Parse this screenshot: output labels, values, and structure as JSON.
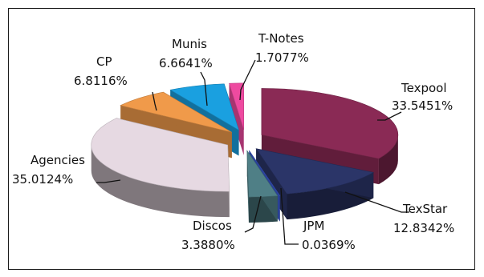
{
  "chart_data": {
    "type": "pie",
    "title": "",
    "style": "3d-exploded",
    "series": [
      {
        "name": "Texpool",
        "label": "Texpool",
        "value_text": "33.5451%",
        "value": 33.5451,
        "color": "#8a2a55"
      },
      {
        "name": "TexStar",
        "label": "TexStar",
        "value_text": "12.8342%",
        "value": 12.8342,
        "color": "#2b3568"
      },
      {
        "name": "JPM",
        "label": "JPM",
        "value_text": "0.0369%",
        "value": 0.0369,
        "color": "#3b5bd6"
      },
      {
        "name": "Discos",
        "label": "Discos",
        "value_text": "3.3880%",
        "value": 3.388,
        "color": "#4f7f86"
      },
      {
        "name": "Agencies",
        "label": "Agencies",
        "value_text": "35.0124%",
        "value": 35.0124,
        "color": "#e6d9e2"
      },
      {
        "name": "CP",
        "label": "CP",
        "value_text": "6.8116%",
        "value": 6.8116,
        "color": "#f09a4a"
      },
      {
        "name": "Munis",
        "label": "Munis",
        "value_text": "6.6641%",
        "value": 6.6641,
        "color": "#1aa0e0"
      },
      {
        "name": "T-Notes",
        "label": "T-Notes",
        "value_text": "1.7077%",
        "value": 1.7077,
        "color": "#ee4aa0"
      }
    ]
  }
}
